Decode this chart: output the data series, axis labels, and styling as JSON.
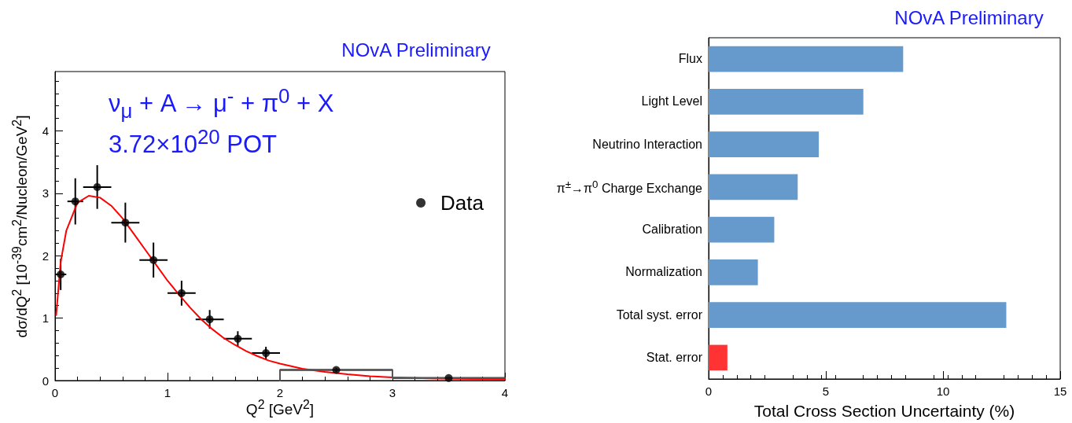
{
  "chart_data": [
    {
      "type": "scatter",
      "title": "NOvA Preliminary",
      "xlabel": "Q$^{2}$ [GeV$^{2}$]",
      "ylabel": "dσ/dQ$^{2}$ [10$^{-39}$cm$^{2}$/Nucleon/GeV$^{2}$]",
      "annotations": [
        "ν$_{μ}$ + A → μ$^{-}$ + π$^{0}$ + X",
        "3.72×10$^{20}$ POT"
      ],
      "xlim": [
        0,
        4
      ],
      "xticks": [
        0,
        1,
        2,
        3,
        4
      ],
      "ylim": [
        0,
        4.95
      ],
      "yticks": [
        0,
        1,
        2,
        3,
        4
      ],
      "grid": false,
      "legend": "right",
      "series": [
        {
          "type": "line",
          "color": "#ff0000",
          "x": [
            0.01,
            0.05,
            0.1,
            0.2,
            0.3,
            0.4,
            0.5,
            0.6,
            0.7,
            0.8,
            0.9,
            1.0,
            1.1,
            1.2,
            1.3,
            1.4,
            1.5,
            1.6,
            1.7,
            1.8,
            1.9,
            2.0,
            2.2,
            2.4,
            2.6,
            2.8,
            3.0,
            3.4,
            4.0
          ],
          "values": [
            1.05,
            1.9,
            2.4,
            2.85,
            2.96,
            2.93,
            2.8,
            2.6,
            2.35,
            2.1,
            1.85,
            1.6,
            1.38,
            1.17,
            0.98,
            0.82,
            0.68,
            0.57,
            0.47,
            0.39,
            0.32,
            0.27,
            0.19,
            0.14,
            0.1,
            0.07,
            0.05,
            0.03,
            0.02
          ]
        },
        {
          "type": "line",
          "color": "#555555",
          "x": [
            2,
            2,
            3,
            3,
            4
          ],
          "values": [
            0,
            0.17,
            0.17,
            0.04,
            0.04
          ]
        },
        {
          "name": "Data",
          "type": "scatter",
          "color": "#000000",
          "marker": "circle",
          "x": [
            0.05,
            0.18,
            0.375,
            0.625,
            0.875,
            1.125,
            1.375,
            1.625,
            1.875,
            2.5,
            3.5
          ],
          "values": [
            1.7,
            2.87,
            3.1,
            2.53,
            1.93,
            1.4,
            0.98,
            0.67,
            0.44,
            0.17,
            0.04
          ],
          "errors": [
            0.25,
            0.37,
            0.35,
            0.32,
            0.28,
            0.2,
            0.15,
            0.12,
            0.1,
            0.03,
            0.02
          ],
          "xerrors": [
            0.05,
            0.07,
            0.125,
            0.125,
            0.125,
            0.125,
            0.125,
            0.125,
            0.125,
            0.5,
            0.5
          ]
        }
      ]
    },
    {
      "type": "bar",
      "orientation": "horizontal",
      "title": "NOvA Preliminary",
      "xlabel": "Total Cross Section Uncertainty (%)",
      "categories": [
        "Flux",
        "Light Level",
        "Neutrino Interaction",
        "π$^{±}$→π$^{0}$ Charge Exchange",
        "Calibration",
        "Normalization",
        "Total syst. error",
        "Stat. error"
      ],
      "values": [
        8.3,
        6.6,
        4.7,
        3.8,
        2.8,
        2.1,
        12.7,
        0.8
      ],
      "colors": [
        "#6699cc",
        "#6699cc",
        "#6699cc",
        "#6699cc",
        "#6699cc",
        "#6699cc",
        "#6699cc",
        "#ff3333"
      ],
      "xlim": [
        0,
        15
      ],
      "xticks": [
        0,
        5,
        10,
        15
      ],
      "grid": false
    }
  ]
}
